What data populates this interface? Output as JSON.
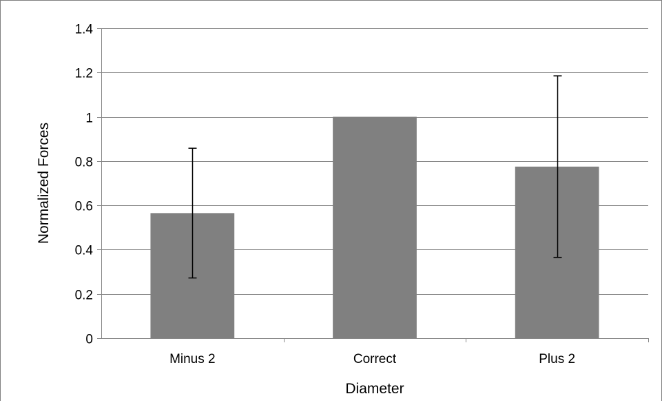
{
  "chart_data": {
    "type": "bar",
    "categories": [
      "Minus 2",
      "Correct",
      "Plus 2"
    ],
    "values": [
      0.565,
      1.0,
      0.775
    ],
    "error_low": [
      0.272,
      1.0,
      0.365
    ],
    "error_high": [
      0.858,
      1.0,
      1.185
    ],
    "title": "",
    "xlabel": "Diameter",
    "ylabel": "Normalized Forces",
    "ylim": [
      0,
      1.4
    ],
    "yticks": [
      "0",
      "0.2",
      "0.4",
      "0.6",
      "0.8",
      "1",
      "1.2",
      "1.4"
    ],
    "grid": true,
    "legend": "none",
    "colors": {
      "bar": "#808080",
      "grid": "#868686",
      "axis": "#868686",
      "error": "#000000"
    }
  }
}
